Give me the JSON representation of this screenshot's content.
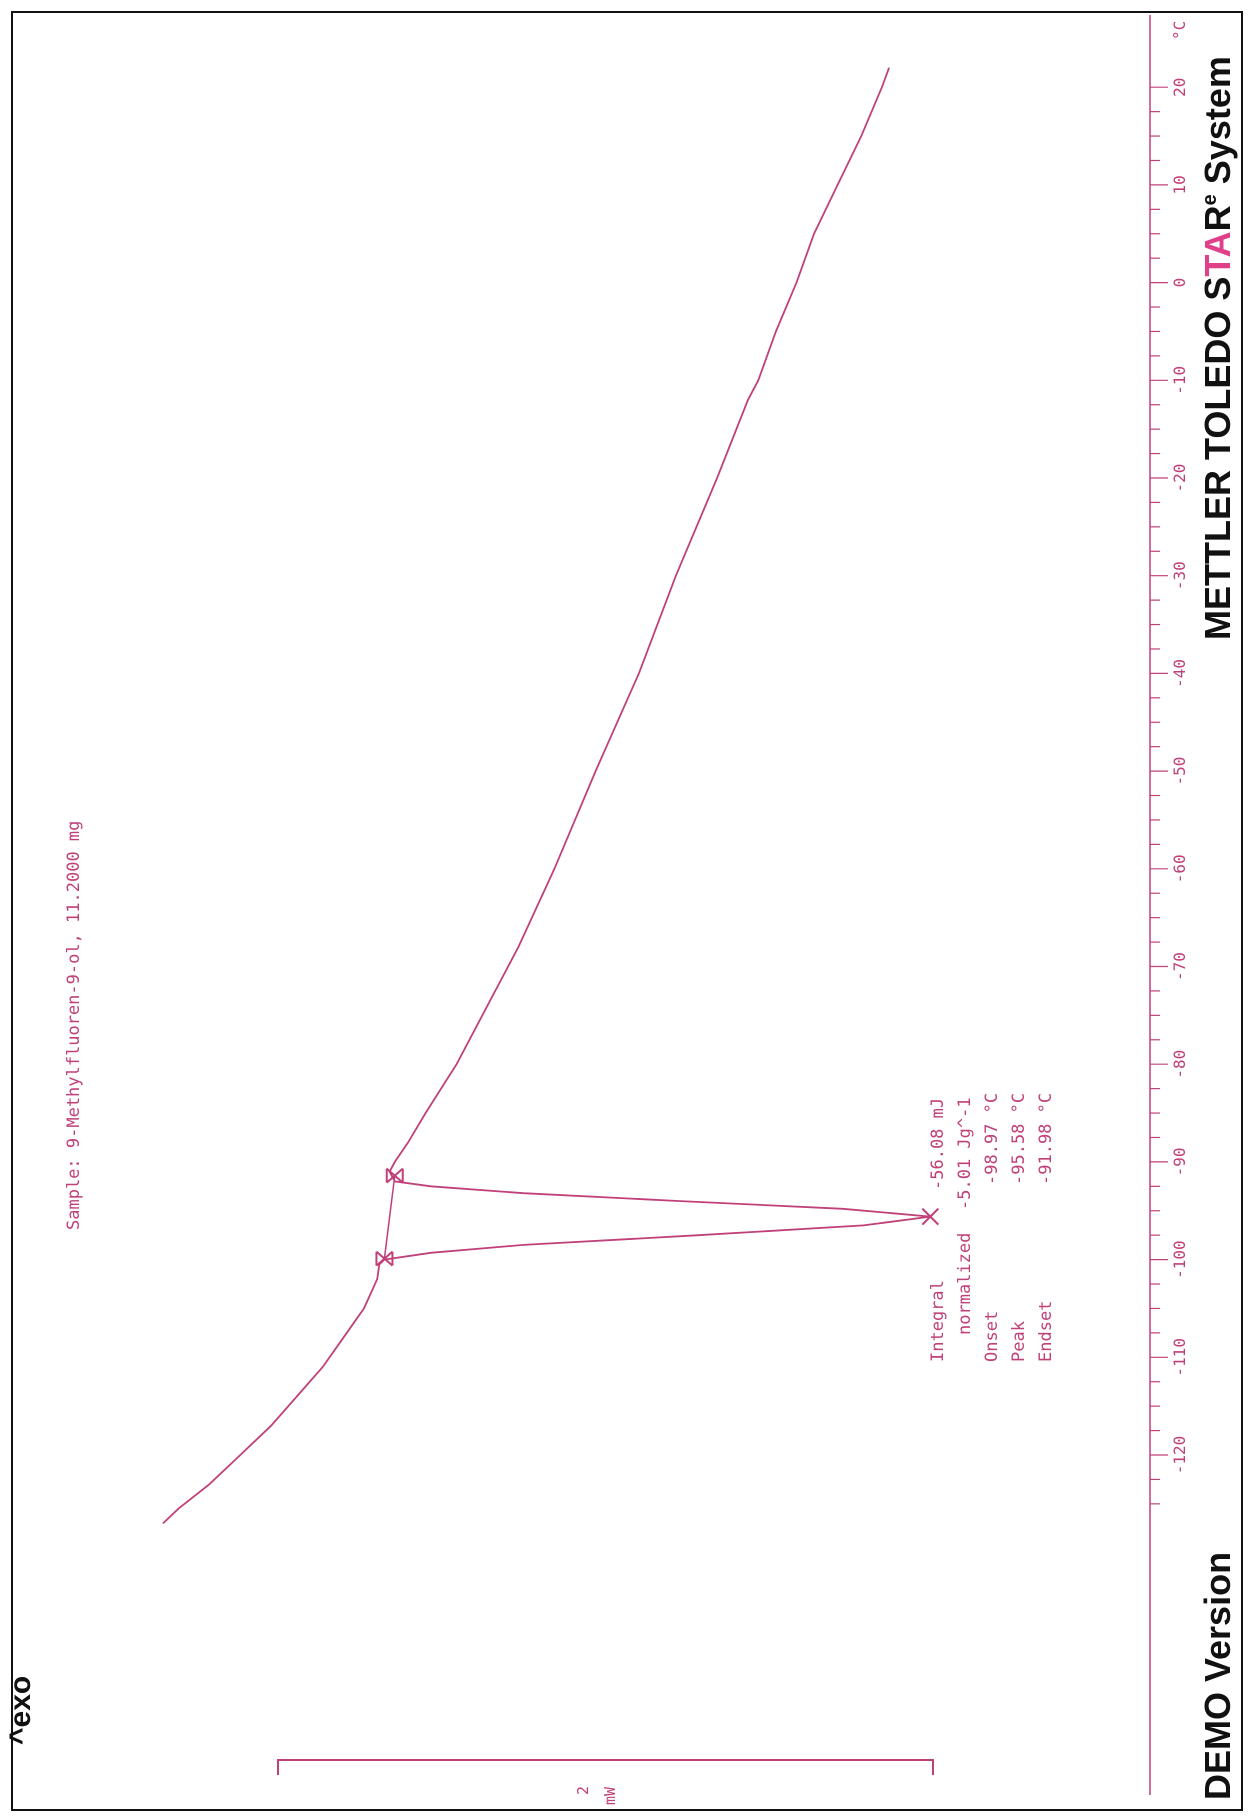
{
  "colors": {
    "trace": "#c0407a",
    "frame": "#111111",
    "brand_dark": "#111111",
    "brand_accent": "#e0408a"
  },
  "header": {
    "exo_label": "^exo"
  },
  "scale_bar": {
    "value": "2",
    "unit": "mW"
  },
  "sample_label": "Sample: 9-Methylfluoren-9-ol, 11.2000 mg",
  "results": {
    "rows": [
      {
        "label": "Integral",
        "value": "-56.08 mJ"
      },
      {
        "label": "normalized",
        "value": "-5.01 Jg^-1"
      },
      {
        "label": "Onset",
        "value": "-98.97 °C"
      },
      {
        "label": "Peak",
        "value": "-95.58 °C"
      },
      {
        "label": "Endset",
        "value": "-91.98 °C"
      }
    ]
  },
  "footer": {
    "demo": "DEMO Version",
    "brand_main": "METTLER TOLEDO ",
    "brand_s": "S",
    "brand_t": "T",
    "brand_a": "A",
    "brand_r": "R",
    "brand_sup": "e",
    "brand_tail": " System"
  },
  "chart_data": {
    "type": "line",
    "title": "Sample: 9-Methylfluoren-9-ol, 11.2000 mg",
    "xlabel": "°C",
    "ylabel": "mW",
    "xlim": [
      -128,
      22
    ],
    "xticks": [
      -120,
      -110,
      -100,
      -90,
      -80,
      -70,
      -60,
      -50,
      -40,
      -30,
      -20,
      -10,
      0,
      10,
      20
    ],
    "grid": false,
    "series": [
      {
        "points": [
          [
            -127.0,
            0.0
          ],
          [
            -125.5,
            0.15
          ],
          [
            -123.0,
            0.45
          ],
          [
            -120.0,
            0.75
          ],
          [
            -117.0,
            1.05
          ],
          [
            -114.0,
            1.3
          ],
          [
            -111.0,
            1.55
          ],
          [
            -108.0,
            1.75
          ],
          [
            -105.0,
            1.95
          ],
          [
            -102.0,
            2.08
          ],
          [
            -100.5,
            2.1
          ],
          [
            -100.0,
            2.15
          ],
          [
            -99.3,
            2.6
          ],
          [
            -98.5,
            3.5
          ],
          [
            -97.5,
            5.2
          ],
          [
            -96.5,
            6.8
          ],
          [
            -95.6,
            7.45
          ],
          [
            -94.8,
            6.6
          ],
          [
            -94.0,
            5.0
          ],
          [
            -93.2,
            3.5
          ],
          [
            -92.5,
            2.6
          ],
          [
            -92.0,
            2.25
          ],
          [
            -91.0,
            2.2
          ],
          [
            -90.0,
            2.25
          ],
          [
            -88.0,
            2.38
          ],
          [
            -85.0,
            2.55
          ],
          [
            -80.0,
            2.85
          ],
          [
            -75.0,
            3.1
          ],
          [
            -72.0,
            3.25
          ],
          [
            -68.0,
            3.45
          ],
          [
            -60.0,
            3.8
          ],
          [
            -50.0,
            4.2
          ],
          [
            -40.0,
            4.62
          ],
          [
            -30.0,
            4.98
          ],
          [
            -20.0,
            5.38
          ],
          [
            -12.0,
            5.68
          ],
          [
            -10.0,
            5.78
          ],
          [
            -5.0,
            5.95
          ],
          [
            0.0,
            6.15
          ],
          [
            5.0,
            6.32
          ],
          [
            10.0,
            6.55
          ],
          [
            15.0,
            6.78
          ],
          [
            20.0,
            6.98
          ],
          [
            22.0,
            7.05
          ]
        ]
      },
      {
        "points": [
          [
            -99.9,
            2.15
          ],
          [
            -91.4,
            2.25
          ]
        ]
      }
    ],
    "annotations": [
      {
        "label": "Onset",
        "x": -98.97
      },
      {
        "label": "Peak",
        "x": -95.58
      },
      {
        "label": "Endset",
        "x": -91.98
      }
    ]
  }
}
